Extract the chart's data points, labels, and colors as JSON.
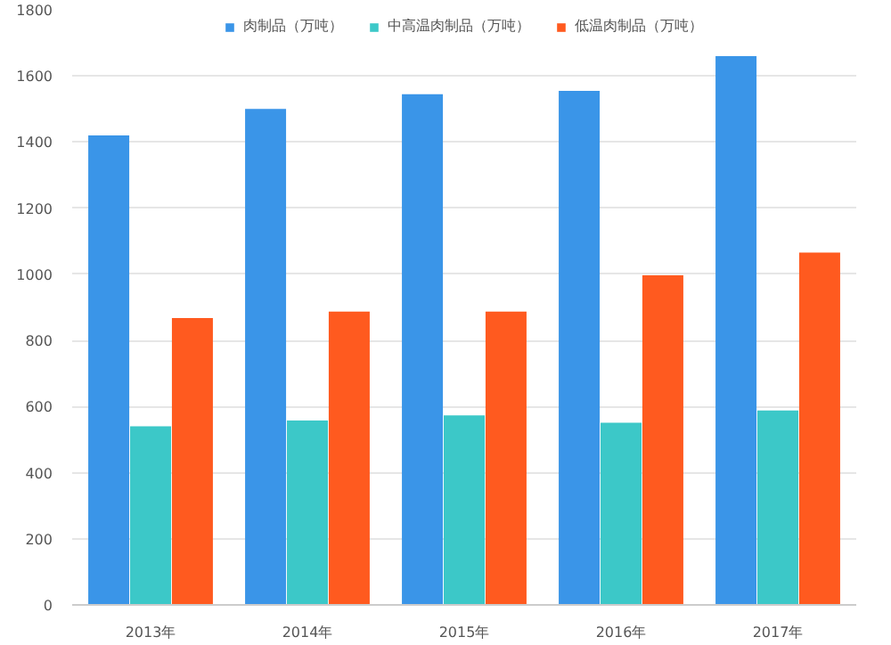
{
  "chart_data": {
    "type": "bar",
    "categories": [
      "2013年",
      "2014年",
      "2015年",
      "2016年",
      "2017年"
    ],
    "series": [
      {
        "name": "肉制品（万吨）",
        "color": "#3a95e8",
        "values": [
          1420,
          1500,
          1545,
          1555,
          1660
        ]
      },
      {
        "name": "中高温肉制品（万吨）",
        "color": "#3cc8c8",
        "values": [
          540,
          558,
          573,
          551,
          588
        ]
      },
      {
        "name": "低温肉制品（万吨）",
        "color": "#ff5a1f",
        "values": [
          868,
          887,
          887,
          997,
          1066
        ]
      }
    ],
    "ylim": [
      0,
      1800
    ],
    "yticks": [
      0,
      200,
      400,
      600,
      800,
      1000,
      1200,
      1400,
      1600,
      1800
    ],
    "grid": "y",
    "legend": "top"
  }
}
